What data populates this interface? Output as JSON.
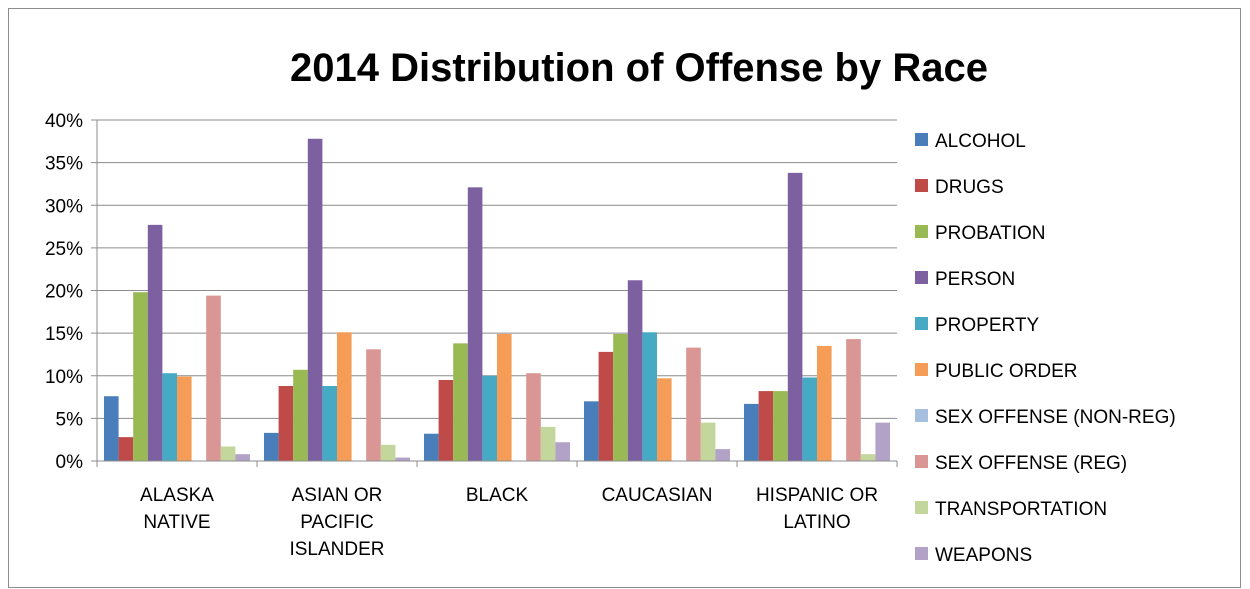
{
  "chart_data": {
    "type": "bar",
    "title": "2014 Distribution of Offense by Race",
    "xlabel": "",
    "ylabel": "",
    "ylim": [
      0,
      0.4
    ],
    "yticks": [
      "0%",
      "5%",
      "10%",
      "15%",
      "20%",
      "25%",
      "30%",
      "35%",
      "40%"
    ],
    "grid": true,
    "legend_position": "right",
    "categories": [
      [
        "ALASKA",
        "NATIVE"
      ],
      [
        "ASIAN OR",
        "PACIFIC",
        "ISLANDER"
      ],
      [
        "BLACK"
      ],
      [
        "CAUCASIAN"
      ],
      [
        "HISPANIC OR",
        "LATINO"
      ]
    ],
    "series": [
      {
        "name": "ALCOHOL",
        "color": "#4a7ebb",
        "values": [
          0.076,
          0.033,
          0.032,
          0.07,
          0.067
        ]
      },
      {
        "name": "DRUGS",
        "color": "#be4b48",
        "values": [
          0.028,
          0.088,
          0.095,
          0.128,
          0.082
        ]
      },
      {
        "name": "PROBATION",
        "color": "#98b954",
        "values": [
          0.198,
          0.107,
          0.138,
          0.149,
          0.082
        ]
      },
      {
        "name": "PERSON",
        "color": "#7d60a0",
        "values": [
          0.277,
          0.378,
          0.321,
          0.212,
          0.338
        ]
      },
      {
        "name": "PROPERTY",
        "color": "#46aac5",
        "values": [
          0.103,
          0.088,
          0.1,
          0.151,
          0.098
        ]
      },
      {
        "name": "PUBLIC ORDER",
        "color": "#f59d56",
        "values": [
          0.099,
          0.151,
          0.149,
          0.097,
          0.135
        ]
      },
      {
        "name": "SEX OFFENSE (NON-REG)",
        "color": "#a7bfde",
        "values": [
          0,
          0,
          0,
          0,
          0
        ]
      },
      {
        "name": "SEX OFFENSE (REG)",
        "color": "#d99694",
        "values": [
          0.194,
          0.131,
          0.103,
          0.133,
          0.143
        ]
      },
      {
        "name": "TRANSPORTATION",
        "color": "#c3d69b",
        "values": [
          0.017,
          0.019,
          0.04,
          0.045,
          0.008
        ]
      },
      {
        "name": "WEAPONS",
        "color": "#b3a2c7",
        "values": [
          0.008,
          0.004,
          0.022,
          0.014,
          0.045
        ]
      }
    ]
  }
}
